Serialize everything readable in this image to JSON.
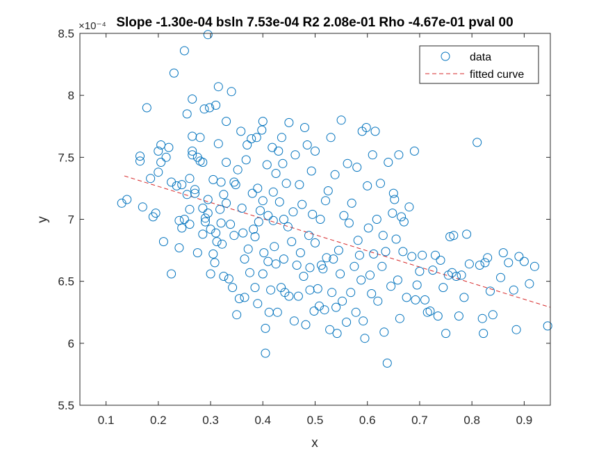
{
  "chart_data": {
    "type": "scatter",
    "title": "Slope -1.30e-04 bsln 7.53e-04 R2 2.08e-01 Rho -4.67e-01 pval 00",
    "exponent_label": "×10⁻⁴",
    "xlabel": "x",
    "ylabel": "y",
    "xlim": [
      0.05,
      0.95
    ],
    "ylim": [
      5.5,
      8.5
    ],
    "xticks": [
      "0.1",
      "0.2",
      "0.3",
      "0.4",
      "0.5",
      "0.6",
      "0.7",
      "0.8",
      "0.9"
    ],
    "xtick_values": [
      0.1,
      0.2,
      0.3,
      0.4,
      0.5,
      0.6,
      0.7,
      0.8,
      0.9
    ],
    "yticks": [
      "5.5",
      "6",
      "6.5",
      "7",
      "7.5",
      "8",
      "8.5"
    ],
    "ytick_values": [
      5.5,
      6,
      6.5,
      7,
      7.5,
      8,
      8.5
    ],
    "grid": false,
    "legend_position": "top-right",
    "legend": [
      "data",
      "fitted curve"
    ],
    "colors": {
      "data": "#0072BD",
      "fit": "#D62728",
      "axes": "#262626"
    },
    "fit_line": {
      "x": [
        0.135,
        0.95
      ],
      "y": [
        7.35,
        6.29
      ]
    },
    "series": [
      {
        "name": "data",
        "marker": "circle",
        "points": [
          [
            0.13,
            7.13
          ],
          [
            0.14,
            7.16
          ],
          [
            0.165,
            7.51
          ],
          [
            0.165,
            7.47
          ],
          [
            0.17,
            7.1
          ],
          [
            0.178,
            7.9
          ],
          [
            0.185,
            7.33
          ],
          [
            0.19,
            7.02
          ],
          [
            0.195,
            7.05
          ],
          [
            0.2,
            7.55
          ],
          [
            0.2,
            7.38
          ],
          [
            0.205,
            7.6
          ],
          [
            0.205,
            7.46
          ],
          [
            0.21,
            6.82
          ],
          [
            0.215,
            7.5
          ],
          [
            0.22,
            7.58
          ],
          [
            0.225,
            6.56
          ],
          [
            0.225,
            7.3
          ],
          [
            0.23,
            8.18
          ],
          [
            0.235,
            7.27
          ],
          [
            0.24,
            6.99
          ],
          [
            0.24,
            6.77
          ],
          [
            0.245,
            7.28
          ],
          [
            0.245,
            6.93
          ],
          [
            0.25,
            8.36
          ],
          [
            0.25,
            7.0
          ],
          [
            0.255,
            7.85
          ],
          [
            0.255,
            7.2
          ],
          [
            0.26,
            7.33
          ],
          [
            0.26,
            7.08
          ],
          [
            0.26,
            6.96
          ],
          [
            0.265,
            7.97
          ],
          [
            0.265,
            7.67
          ],
          [
            0.265,
            7.52
          ],
          [
            0.265,
            7.55
          ],
          [
            0.27,
            7.24
          ],
          [
            0.27,
            7.21
          ],
          [
            0.275,
            7.5
          ],
          [
            0.275,
            6.73
          ],
          [
            0.28,
            7.66
          ],
          [
            0.28,
            7.47
          ],
          [
            0.285,
            7.46
          ],
          [
            0.285,
            7.09
          ],
          [
            0.285,
            6.88
          ],
          [
            0.288,
            7.89
          ],
          [
            0.29,
            7.01
          ],
          [
            0.29,
            6.98
          ],
          [
            0.295,
            7.16
          ],
          [
            0.295,
            7.05
          ],
          [
            0.295,
            8.49
          ],
          [
            0.298,
            7.9
          ],
          [
            0.3,
            6.92
          ],
          [
            0.3,
            6.56
          ],
          [
            0.305,
            7.32
          ],
          [
            0.305,
            6.72
          ],
          [
            0.308,
            6.65
          ],
          [
            0.31,
            7.92
          ],
          [
            0.31,
            6.89
          ],
          [
            0.312,
            6.82
          ],
          [
            0.315,
            8.07
          ],
          [
            0.315,
            7.61
          ],
          [
            0.318,
            7.08
          ],
          [
            0.32,
            7.3
          ],
          [
            0.32,
            6.97
          ],
          [
            0.322,
            6.8
          ],
          [
            0.325,
            6.54
          ],
          [
            0.325,
            7.2
          ],
          [
            0.33,
            7.79
          ],
          [
            0.33,
            7.46
          ],
          [
            0.33,
            7.13
          ],
          [
            0.335,
            6.52
          ],
          [
            0.338,
            6.96
          ],
          [
            0.34,
            8.03
          ],
          [
            0.342,
            6.45
          ],
          [
            0.345,
            6.87
          ],
          [
            0.345,
            7.3
          ],
          [
            0.348,
            7.28
          ],
          [
            0.35,
            6.23
          ],
          [
            0.352,
            7.4
          ],
          [
            0.355,
            6.36
          ],
          [
            0.358,
            7.71
          ],
          [
            0.36,
            7.09
          ],
          [
            0.362,
            6.89
          ],
          [
            0.365,
            6.68
          ],
          [
            0.365,
            6.37
          ],
          [
            0.368,
            7.48
          ],
          [
            0.37,
            7.6
          ],
          [
            0.372,
            6.76
          ],
          [
            0.375,
            6.57
          ],
          [
            0.378,
            7.65
          ],
          [
            0.38,
            7.21
          ],
          [
            0.382,
            6.92
          ],
          [
            0.385,
            6.86
          ],
          [
            0.385,
            6.45
          ],
          [
            0.388,
            7.66
          ],
          [
            0.39,
            7.25
          ],
          [
            0.39,
            6.32
          ],
          [
            0.392,
            6.98
          ],
          [
            0.395,
            7.07
          ],
          [
            0.398,
            7.72
          ],
          [
            0.4,
            7.79
          ],
          [
            0.4,
            7.15
          ],
          [
            0.4,
            6.56
          ],
          [
            0.402,
            6.73
          ],
          [
            0.405,
            6.12
          ],
          [
            0.405,
            5.92
          ],
          [
            0.408,
            7.44
          ],
          [
            0.41,
            7.03
          ],
          [
            0.41,
            6.66
          ],
          [
            0.412,
            6.25
          ],
          [
            0.415,
            6.43
          ],
          [
            0.418,
            7.58
          ],
          [
            0.42,
            7.22
          ],
          [
            0.42,
            6.99
          ],
          [
            0.422,
            6.78
          ],
          [
            0.425,
            6.64
          ],
          [
            0.425,
            7.37
          ],
          [
            0.428,
            6.25
          ],
          [
            0.43,
            7.55
          ],
          [
            0.432,
            7.14
          ],
          [
            0.435,
            6.45
          ],
          [
            0.436,
            7.66
          ],
          [
            0.438,
            7.45
          ],
          [
            0.44,
            7.0
          ],
          [
            0.44,
            6.68
          ],
          [
            0.442,
            6.41
          ],
          [
            0.445,
            7.29
          ],
          [
            0.448,
            6.94
          ],
          [
            0.45,
            6.38
          ],
          [
            0.45,
            7.78
          ],
          [
            0.455,
            6.82
          ],
          [
            0.458,
            7.06
          ],
          [
            0.46,
            6.18
          ],
          [
            0.462,
            7.52
          ],
          [
            0.465,
            6.63
          ],
          [
            0.468,
            6.38
          ],
          [
            0.47,
            7.28
          ],
          [
            0.472,
            6.73
          ],
          [
            0.475,
            7.12
          ],
          [
            0.478,
            6.54
          ],
          [
            0.48,
            7.74
          ],
          [
            0.482,
            6.15
          ],
          [
            0.485,
            7.6
          ],
          [
            0.488,
            6.87
          ],
          [
            0.49,
            6.61
          ],
          [
            0.49,
            6.43
          ],
          [
            0.493,
            7.39
          ],
          [
            0.495,
            7.04
          ],
          [
            0.498,
            6.26
          ],
          [
            0.5,
            7.55
          ],
          [
            0.5,
            6.81
          ],
          [
            0.505,
            6.44
          ],
          [
            0.508,
            6.3
          ],
          [
            0.51,
            7.0
          ],
          [
            0.512,
            6.63
          ],
          [
            0.515,
            6.6
          ],
          [
            0.518,
            6.27
          ],
          [
            0.52,
            7.15
          ],
          [
            0.522,
            6.69
          ],
          [
            0.525,
            7.23
          ],
          [
            0.528,
            6.11
          ],
          [
            0.53,
            7.66
          ],
          [
            0.532,
            6.41
          ],
          [
            0.535,
            6.68
          ],
          [
            0.538,
            7.36
          ],
          [
            0.54,
            6.29
          ],
          [
            0.542,
            6.08
          ],
          [
            0.545,
            6.75
          ],
          [
            0.548,
            6.56
          ],
          [
            0.55,
            7.8
          ],
          [
            0.552,
            6.34
          ],
          [
            0.555,
            7.03
          ],
          [
            0.56,
            6.17
          ],
          [
            0.562,
            7.45
          ],
          [
            0.565,
            6.97
          ],
          [
            0.568,
            6.41
          ],
          [
            0.57,
            7.13
          ],
          [
            0.575,
            6.62
          ],
          [
            0.578,
            6.25
          ],
          [
            0.58,
            7.42
          ],
          [
            0.582,
            6.83
          ],
          [
            0.585,
            6.71
          ],
          [
            0.588,
            6.51
          ],
          [
            0.59,
            7.71
          ],
          [
            0.592,
            6.18
          ],
          [
            0.595,
            6.04
          ],
          [
            0.598,
            7.74
          ],
          [
            0.6,
            7.27
          ],
          [
            0.602,
            6.93
          ],
          [
            0.605,
            6.55
          ],
          [
            0.608,
            6.4
          ],
          [
            0.61,
            7.52
          ],
          [
            0.612,
            6.72
          ],
          [
            0.615,
            7.71
          ],
          [
            0.618,
            7.0
          ],
          [
            0.62,
            6.34
          ],
          [
            0.625,
            7.29
          ],
          [
            0.628,
            6.62
          ],
          [
            0.63,
            6.87
          ],
          [
            0.632,
            6.09
          ],
          [
            0.635,
            6.74
          ],
          [
            0.638,
            5.84
          ],
          [
            0.64,
            7.46
          ],
          [
            0.645,
            6.46
          ],
          [
            0.648,
            7.05
          ],
          [
            0.65,
            7.21
          ],
          [
            0.652,
            7.16
          ],
          [
            0.655,
            6.84
          ],
          [
            0.658,
            6.51
          ],
          [
            0.66,
            7.52
          ],
          [
            0.662,
            6.2
          ],
          [
            0.665,
            7.02
          ],
          [
            0.668,
            6.74
          ],
          [
            0.67,
            6.98
          ],
          [
            0.675,
            6.37
          ],
          [
            0.68,
            7.1
          ],
          [
            0.685,
            6.7
          ],
          [
            0.69,
            7.55
          ],
          [
            0.692,
            6.35
          ],
          [
            0.695,
            6.47
          ],
          [
            0.7,
            6.58
          ],
          [
            0.705,
            6.71
          ],
          [
            0.71,
            6.35
          ],
          [
            0.715,
            6.25
          ],
          [
            0.72,
            6.26
          ],
          [
            0.725,
            6.59
          ],
          [
            0.73,
            6.71
          ],
          [
            0.735,
            6.22
          ],
          [
            0.74,
            6.67
          ],
          [
            0.745,
            6.45
          ],
          [
            0.75,
            6.08
          ],
          [
            0.755,
            6.55
          ],
          [
            0.758,
            6.86
          ],
          [
            0.762,
            6.57
          ],
          [
            0.765,
            6.87
          ],
          [
            0.77,
            6.54
          ],
          [
            0.775,
            6.22
          ],
          [
            0.78,
            6.55
          ],
          [
            0.785,
            6.37
          ],
          [
            0.79,
            6.88
          ],
          [
            0.795,
            6.64
          ],
          [
            0.81,
            7.62
          ],
          [
            0.815,
            6.63
          ],
          [
            0.82,
            6.2
          ],
          [
            0.822,
            6.08
          ],
          [
            0.825,
            6.65
          ],
          [
            0.83,
            6.69
          ],
          [
            0.835,
            6.42
          ],
          [
            0.84,
            6.23
          ],
          [
            0.855,
            6.53
          ],
          [
            0.86,
            6.73
          ],
          [
            0.87,
            6.65
          ],
          [
            0.88,
            6.43
          ],
          [
            0.885,
            6.11
          ],
          [
            0.89,
            6.7
          ],
          [
            0.9,
            6.66
          ],
          [
            0.91,
            6.48
          ],
          [
            0.92,
            6.62
          ],
          [
            0.945,
            6.14
          ]
        ]
      },
      {
        "name": "fitted curve",
        "style": "dashed"
      }
    ]
  }
}
